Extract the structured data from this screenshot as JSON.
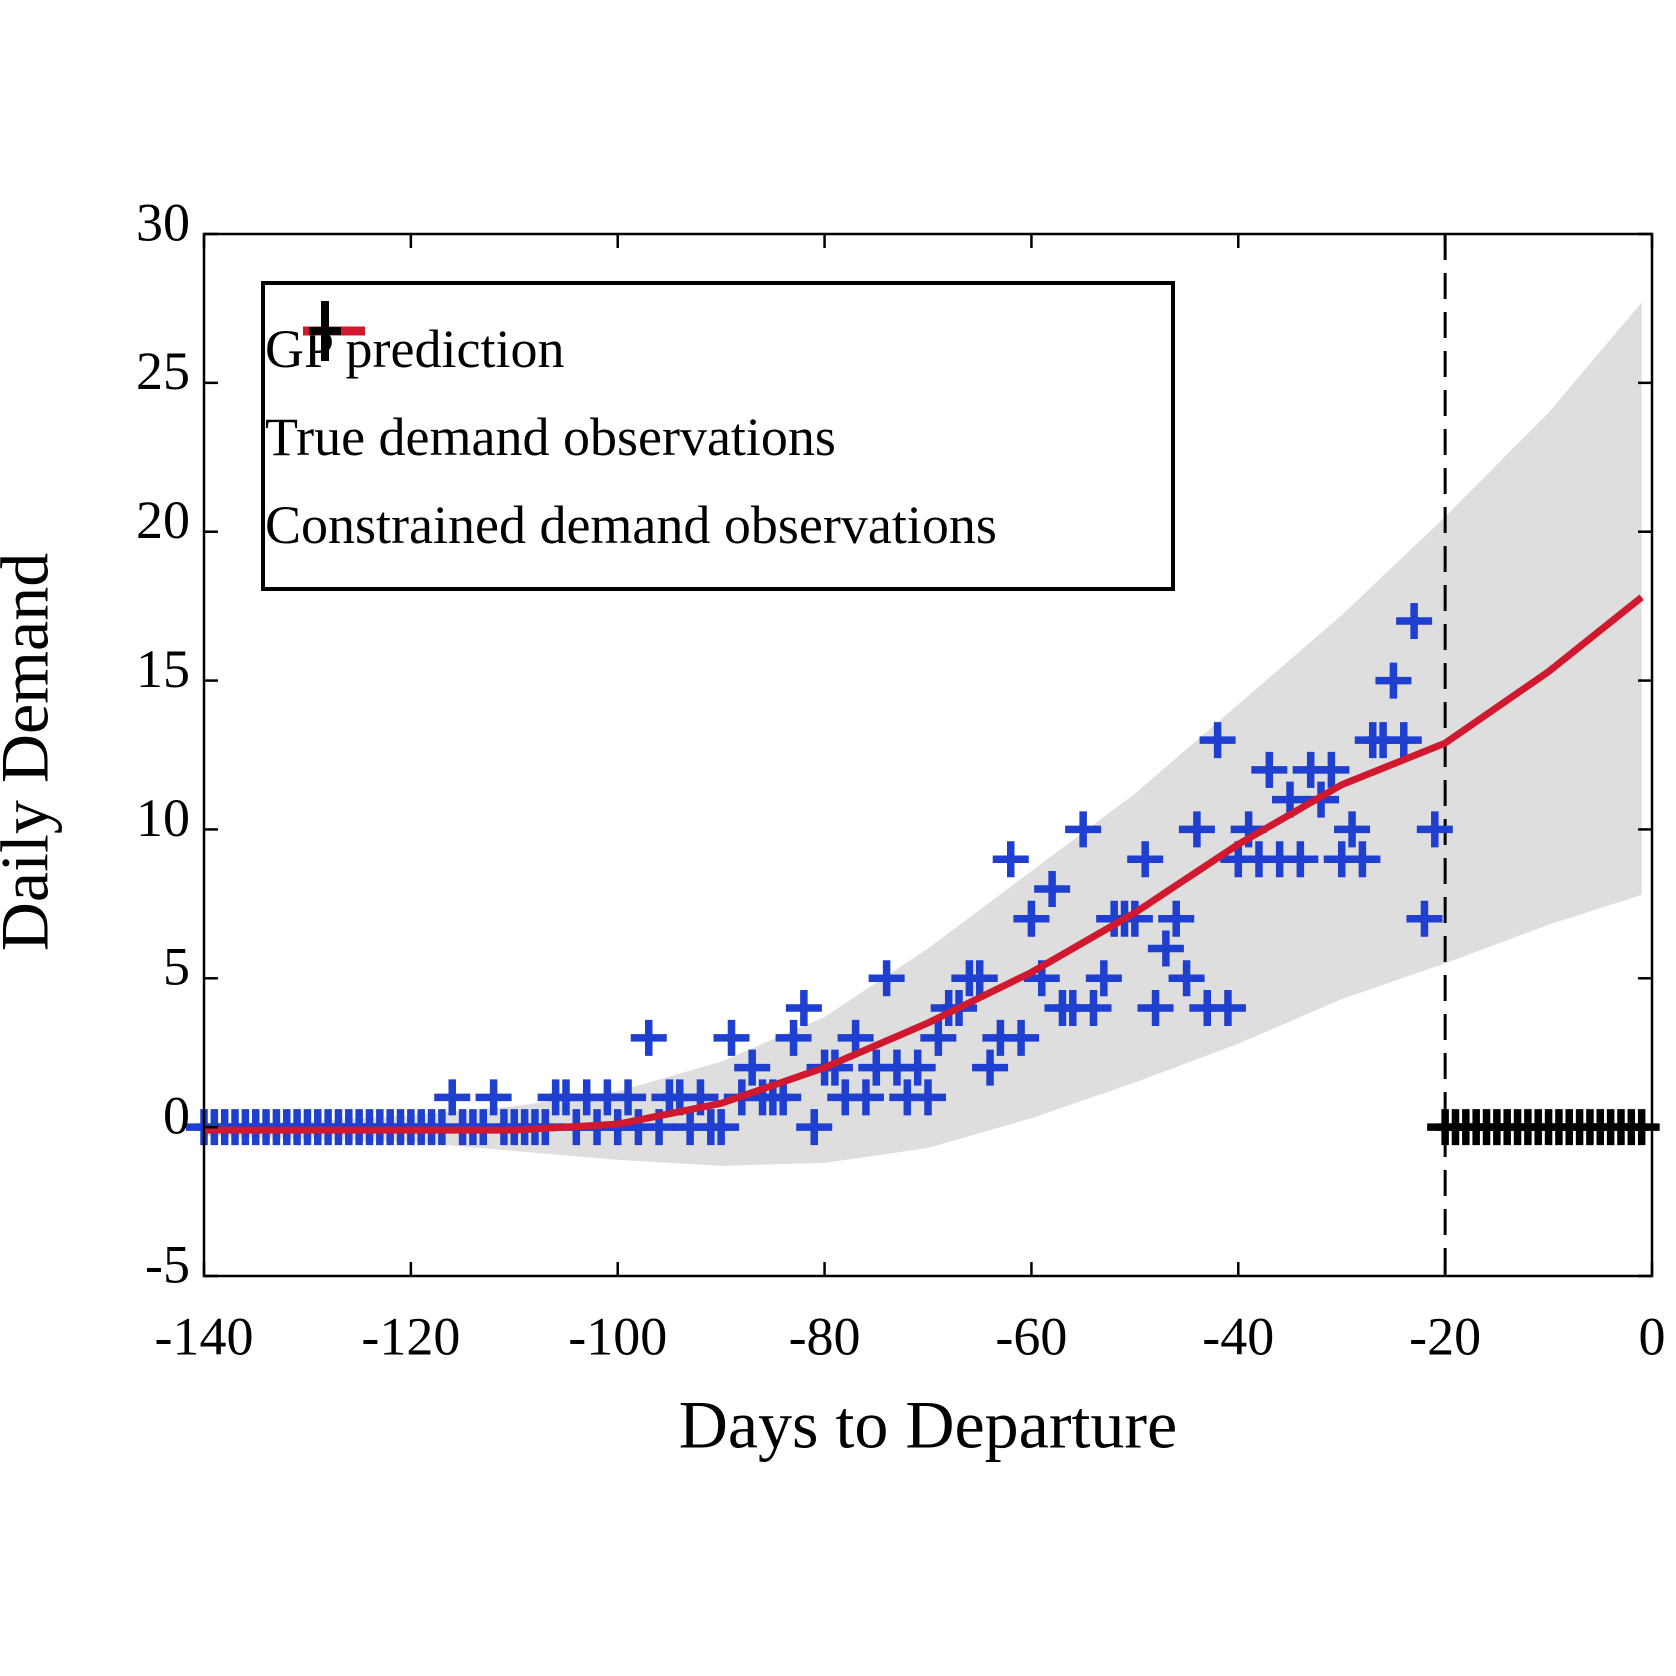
{
  "chart_data": {
    "type": "scatter",
    "x_label": "Days to Departure",
    "y_label": "Daily Demand",
    "xlim": [
      -140,
      0
    ],
    "ylim": [
      -5,
      30
    ],
    "xticks": [
      -140,
      -120,
      -100,
      -80,
      -60,
      -40,
      -20,
      0
    ],
    "yticks": [
      -5,
      0,
      5,
      10,
      15,
      20,
      25,
      30
    ],
    "vline": -20,
    "legend": "upper left",
    "band": {
      "color": "#dedede",
      "x": [
        -140,
        -130,
        -120,
        -110,
        -100,
        -90,
        -80,
        -70,
        -60,
        -50,
        -40,
        -30,
        -20,
        -10,
        -1
      ],
      "lower": [
        -0.3,
        -0.4,
        -0.5,
        -0.8,
        -1.1,
        -1.3,
        -1.2,
        -0.7,
        0.3,
        1.5,
        2.8,
        4.3,
        5.5,
        6.8,
        7.8
      ],
      "upper": [
        0.1,
        0.2,
        0.4,
        0.7,
        1.2,
        2.2,
        3.7,
        6.0,
        8.6,
        11.2,
        14.2,
        17.2,
        20.5,
        24.0,
        27.7
      ]
    },
    "series": [
      {
        "name": "GP prediction",
        "type": "line",
        "color": "#d0182f",
        "x": [
          -140,
          -130,
          -120,
          -110,
          -100,
          -90,
          -80,
          -70,
          -60,
          -50,
          -40,
          -30,
          -20,
          -10,
          -1
        ],
        "values": [
          -0.1,
          -0.1,
          -0.1,
          -0.1,
          0.1,
          0.8,
          2.0,
          3.5,
          5.2,
          7.2,
          9.5,
          11.5,
          12.9,
          15.3,
          17.8
        ]
      },
      {
        "name": "True demand observations",
        "type": "scatter",
        "color": "#1f3fd0",
        "x": [
          -140,
          -139,
          -138,
          -137,
          -136,
          -135,
          -134,
          -133,
          -132,
          -131,
          -130,
          -129,
          -128,
          -127,
          -126,
          -125,
          -124,
          -123,
          -122,
          -121,
          -120,
          -119,
          -118,
          -117,
          -116,
          -115,
          -114,
          -113,
          -112,
          -111,
          -110,
          -109,
          -108,
          -107,
          -106,
          -105,
          -104,
          -103,
          -102,
          -101,
          -100,
          -99,
          -98,
          -97,
          -96,
          -95,
          -94,
          -93,
          -92,
          -91,
          -90,
          -89,
          -88,
          -87,
          -86,
          -85,
          -84,
          -83,
          -82,
          -81,
          -80,
          -79,
          -78,
          -77,
          -76,
          -75,
          -74,
          -73,
          -72,
          -71,
          -70,
          -69,
          -68,
          -67,
          -66,
          -65,
          -64,
          -63,
          -62,
          -61,
          -60,
          -59,
          -58,
          -57,
          -56,
          -55,
          -54,
          -53,
          -52,
          -51,
          -50,
          -49,
          -48,
          -47,
          -46,
          -45,
          -44,
          -43,
          -42,
          -41,
          -40,
          -39,
          -38,
          -37,
          -36,
          -35,
          -34,
          -33,
          -32,
          -31,
          -30,
          -29,
          -28,
          -27,
          -26,
          -25,
          -24,
          -23,
          -22,
          -21
        ],
        "values": [
          0,
          0,
          0,
          0,
          0,
          0,
          0,
          0,
          0,
          0,
          0,
          0,
          0,
          0,
          0,
          0,
          0,
          0,
          0,
          0,
          0,
          0,
          0,
          0,
          1,
          0,
          0,
          0,
          1,
          0,
          0,
          0,
          0,
          0,
          1,
          1,
          0,
          1,
          0,
          1,
          0,
          1,
          0,
          3,
          0,
          1,
          1,
          0,
          1,
          0,
          0,
          3,
          1,
          2,
          1,
          1,
          1,
          3,
          4,
          0,
          2,
          2,
          1,
          3,
          1,
          2,
          5,
          2,
          1,
          2,
          1,
          3,
          4,
          4,
          5,
          5,
          2,
          3,
          9,
          3,
          7,
          5,
          8,
          4,
          4,
          10,
          4,
          5,
          7,
          7,
          7,
          9,
          4,
          6,
          7,
          5,
          10,
          4,
          13,
          4,
          9,
          10,
          9,
          12,
          9,
          11,
          9,
          12,
          11,
          12,
          9,
          10,
          9,
          13,
          13,
          15,
          13,
          17,
          7,
          10
        ]
      },
      {
        "name": "Constrained demand observations",
        "type": "scatter",
        "color": "#000000",
        "x": [
          -20,
          -19,
          -18,
          -17,
          -16,
          -15,
          -14,
          -13,
          -12,
          -11,
          -10,
          -9,
          -8,
          -7,
          -6,
          -5,
          -4,
          -3,
          -2,
          -1
        ],
        "values": [
          0,
          0,
          0,
          0,
          0,
          0,
          0,
          0,
          0,
          0,
          0,
          0,
          0,
          0,
          0,
          0,
          0,
          0,
          0,
          0
        ]
      }
    ]
  }
}
